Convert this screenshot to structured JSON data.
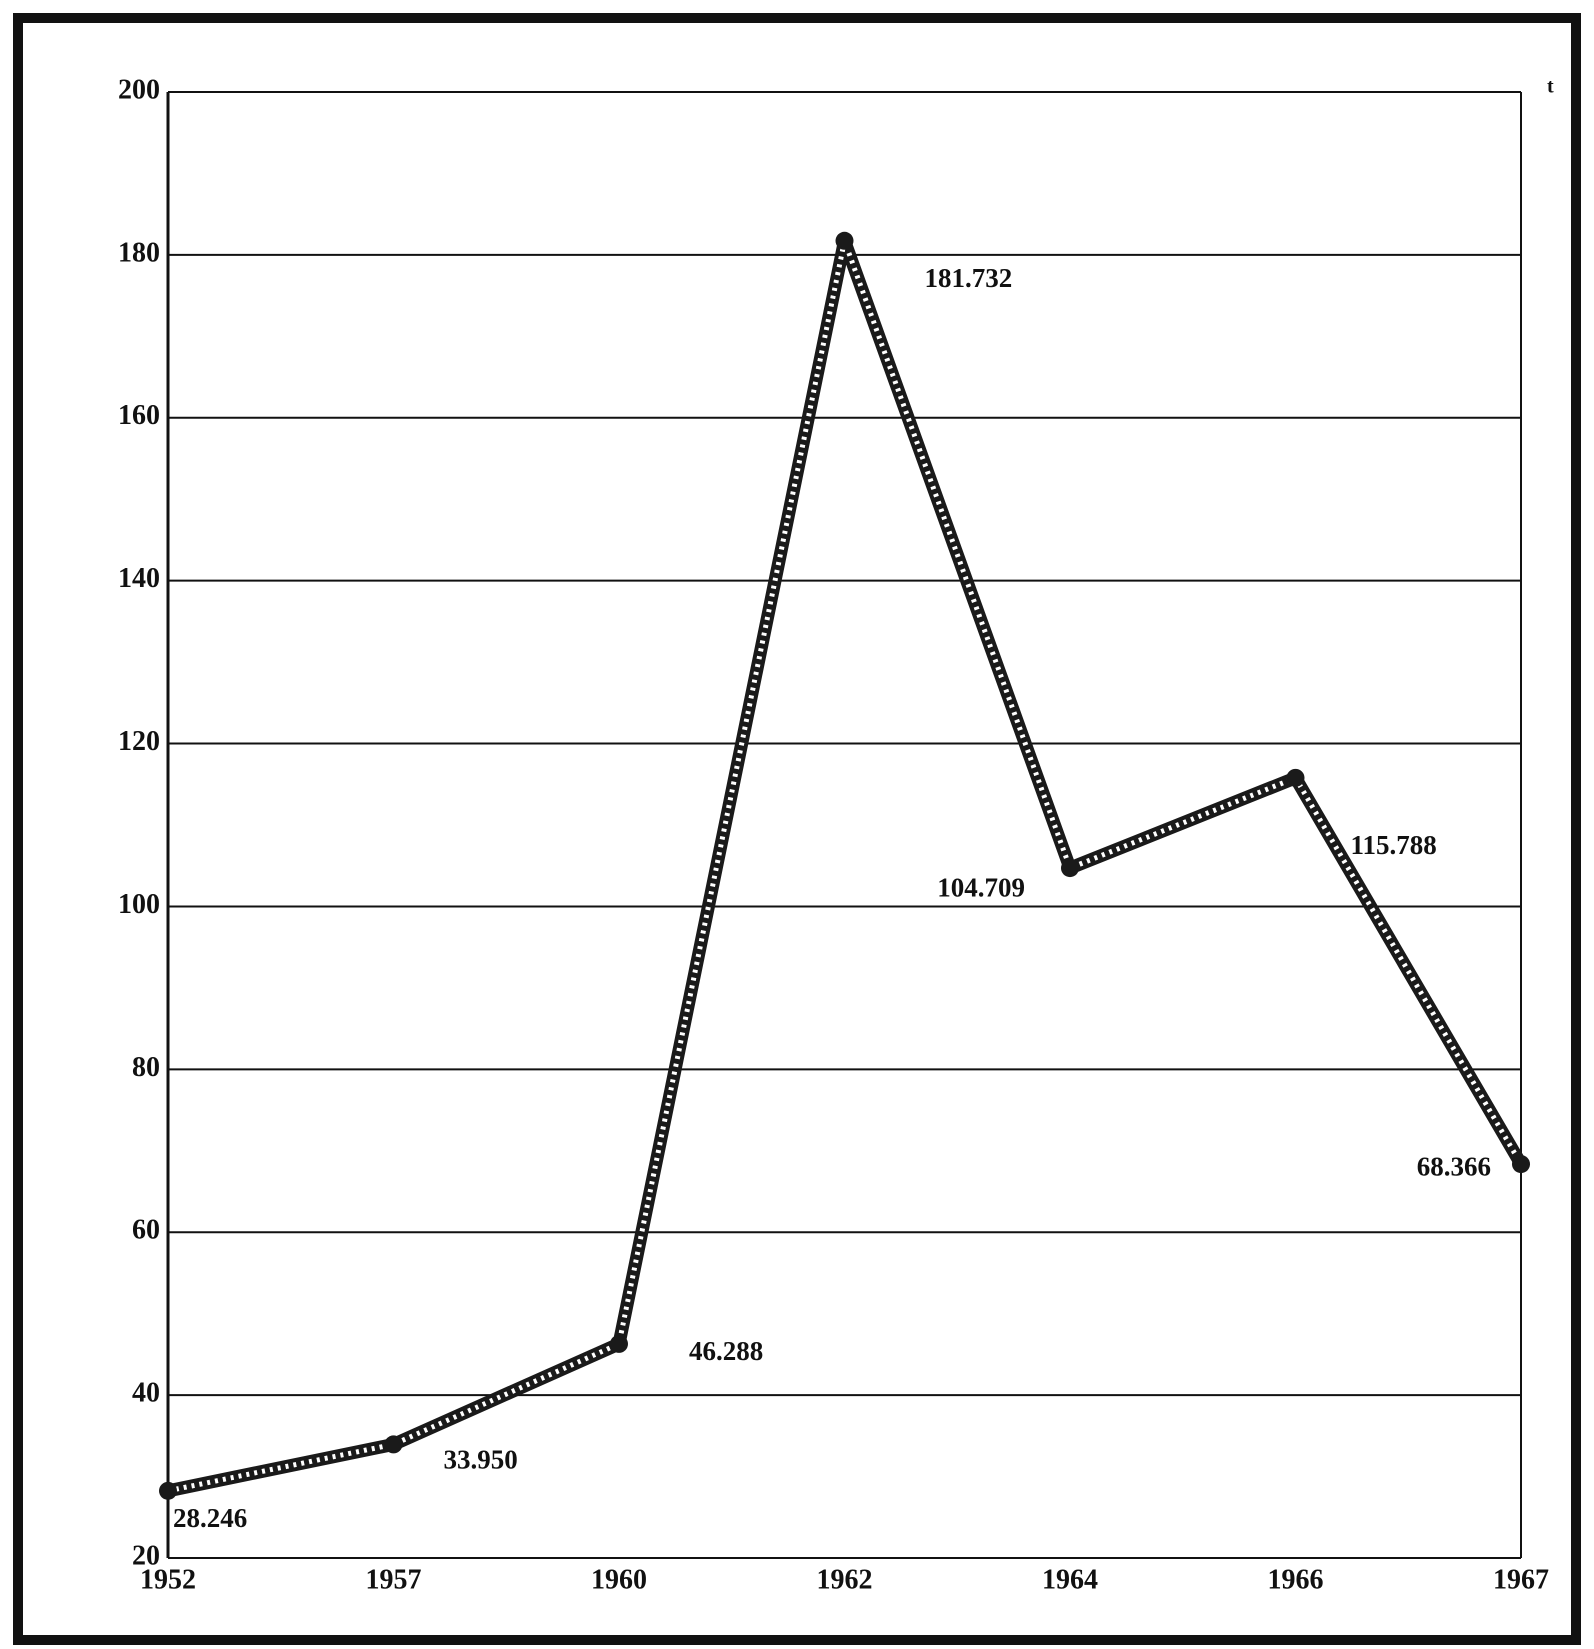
{
  "chart_data": {
    "type": "line",
    "categories": [
      "1952",
      "1957",
      "1960",
      "1962",
      "1964",
      "1966",
      "1967"
    ],
    "values": [
      28.246,
      33.95,
      46.288,
      181.732,
      104.709,
      115.788,
      68.366
    ],
    "value_labels": [
      "28.246",
      "33.950",
      "46.288",
      "181.732",
      "104.709",
      "115.788",
      "68.366"
    ],
    "y_unit": "t",
    "color": "#1a1a1a",
    "ylim": [
      20,
      200
    ],
    "yticks": [
      20,
      40,
      60,
      80,
      100,
      120,
      140,
      160,
      180,
      200
    ],
    "grid": true
  }
}
